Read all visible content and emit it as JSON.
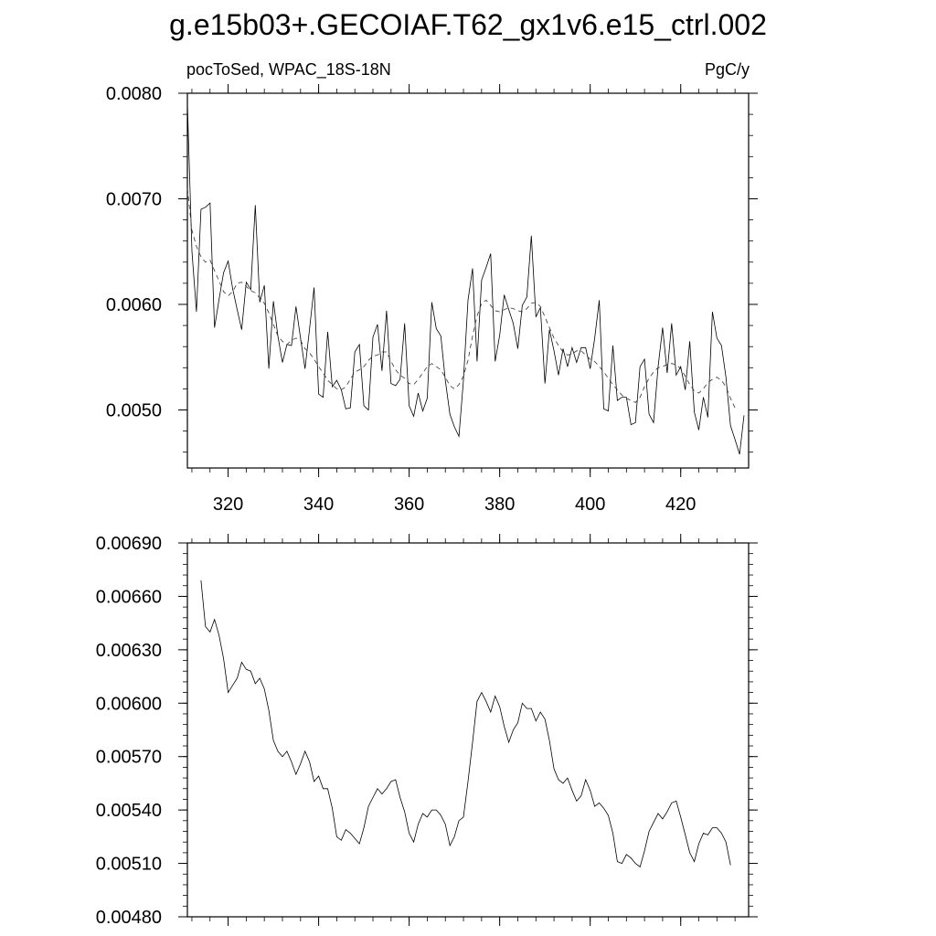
{
  "title": "g.e15b03+.GECOIAF.T62_gx1v6.e15_ctrl.002",
  "chart_data": [
    {
      "type": "line",
      "left_label": "pocToSed, WPAC_18S-18N",
      "right_label": "PgC/y",
      "xlim": [
        311,
        435
      ],
      "ylim": [
        0.00445,
        0.008
      ],
      "xticks": [
        320,
        340,
        360,
        380,
        400,
        420
      ],
      "xtick_labels": [
        "320",
        "340",
        "360",
        "380",
        "400",
        "420"
      ],
      "yticks": [
        0.005,
        0.006,
        0.007,
        0.008
      ],
      "ytick_labels": [
        "0.0050",
        "0.0060",
        "0.0070",
        "0.0080"
      ],
      "x_start": 311,
      "x_step": 1,
      "series": [
        {
          "style": "solid",
          "values": [
            0.0079,
            0.0065,
            0.00593,
            0.0069,
            0.00692,
            0.00696,
            0.00578,
            0.00605,
            0.0063,
            0.00641,
            0.00615,
            0.00595,
            0.00576,
            0.00621,
            0.00614,
            0.00694,
            0.00602,
            0.00618,
            0.00539,
            0.00603,
            0.0057,
            0.00545,
            0.00562,
            0.00561,
            0.00598,
            0.00568,
            0.00539,
            0.00577,
            0.00616,
            0.00515,
            0.00512,
            0.00574,
            0.00522,
            0.00528,
            0.00519,
            0.00501,
            0.00502,
            0.00555,
            0.00562,
            0.00504,
            0.005,
            0.00569,
            0.00581,
            0.00537,
            0.00594,
            0.00525,
            0.00523,
            0.00529,
            0.00582,
            0.00504,
            0.00494,
            0.00516,
            0.00499,
            0.00511,
            0.00602,
            0.00577,
            0.0057,
            0.00528,
            0.00496,
            0.00484,
            0.00475,
            0.00528,
            0.00604,
            0.00634,
            0.00546,
            0.00623,
            0.00635,
            0.00648,
            0.00546,
            0.00571,
            0.00609,
            0.00595,
            0.00582,
            0.00558,
            0.00599,
            0.00607,
            0.00665,
            0.00588,
            0.00597,
            0.00525,
            0.00576,
            0.00556,
            0.00533,
            0.00558,
            0.00541,
            0.00559,
            0.00545,
            0.00559,
            0.00559,
            0.00539,
            0.00568,
            0.00604,
            0.00501,
            0.00499,
            0.00561,
            0.00509,
            0.00512,
            0.00512,
            0.00486,
            0.00488,
            0.00541,
            0.00548,
            0.00496,
            0.00488,
            0.00541,
            0.00578,
            0.00535,
            0.00582,
            0.00533,
            0.00541,
            0.00519,
            0.00565,
            0.00498,
            0.00481,
            0.00512,
            0.00493,
            0.00593,
            0.00568,
            0.00561,
            0.00531,
            0.00485,
            0.00472,
            0.00458,
            0.00495
          ]
        },
        {
          "style": "dashed",
          "values": [
            0.0071,
            0.0067,
            0.00655,
            0.00645,
            0.0064,
            0.00642,
            0.00632,
            0.00622,
            0.00612,
            0.00608,
            0.00612,
            0.0062,
            0.00621,
            0.00617,
            0.00613,
            0.00611,
            0.00606,
            0.00601,
            0.00592,
            0.00581,
            0.0057,
            0.00565,
            0.00562,
            0.00566,
            0.00568,
            0.00566,
            0.00558,
            0.00554,
            0.00548,
            0.00541,
            0.00535,
            0.00528,
            0.00524,
            0.0052,
            0.00519,
            0.00522,
            0.00529,
            0.00536,
            0.00538,
            0.00541,
            0.00547,
            0.00551,
            0.00552,
            0.00555,
            0.00555,
            0.00546,
            0.00538,
            0.00533,
            0.0053,
            0.00525,
            0.00524,
            0.00529,
            0.00535,
            0.00541,
            0.00544,
            0.00541,
            0.00538,
            0.00531,
            0.00523,
            0.0052,
            0.00524,
            0.00532,
            0.00547,
            0.0057,
            0.00589,
            0.00601,
            0.00604,
            0.00599,
            0.00594,
            0.00593,
            0.00595,
            0.00597,
            0.00596,
            0.00594,
            0.00593,
            0.00596,
            0.00601,
            0.00602,
            0.00598,
            0.00588,
            0.00578,
            0.00568,
            0.00561,
            0.00555,
            0.00552,
            0.00553,
            0.00556,
            0.00556,
            0.00552,
            0.00548,
            0.00546,
            0.00541,
            0.00536,
            0.0053,
            0.00524,
            0.00519,
            0.00514,
            0.00511,
            0.00509,
            0.00507,
            0.00512,
            0.00522,
            0.0053,
            0.00536,
            0.0054,
            0.00541,
            0.00543,
            0.00544,
            0.00543,
            0.00539,
            0.00532,
            0.00524,
            0.00518,
            0.00516,
            0.0052,
            0.00526,
            0.00529,
            0.00531,
            0.00528,
            0.00522,
            0.00511,
            0.00502
          ]
        }
      ]
    },
    {
      "type": "line",
      "xlim": [
        311,
        435
      ],
      "ylim": [
        0.0048,
        0.0069
      ],
      "xticks": [
        320,
        340,
        360,
        380,
        400,
        420
      ],
      "xtick_labels": [],
      "yticks": [
        0.0048,
        0.0051,
        0.0054,
        0.0057,
        0.006,
        0.0063,
        0.0066,
        0.0069
      ],
      "ytick_labels": [
        "0.00480",
        "0.00510",
        "0.00540",
        "0.00570",
        "0.00600",
        "0.00630",
        "0.00660",
        "0.00690"
      ],
      "x_start": 314,
      "x_step": 1,
      "series": [
        {
          "style": "solid",
          "values": [
            0.00669,
            0.00643,
            0.0064,
            0.00647,
            0.00638,
            0.00625,
            0.00606,
            0.0061,
            0.00614,
            0.00623,
            0.00619,
            0.00618,
            0.00611,
            0.00614,
            0.00608,
            0.00596,
            0.00579,
            0.00573,
            0.0057,
            0.00573,
            0.00567,
            0.0056,
            0.00566,
            0.00573,
            0.00567,
            0.00556,
            0.00559,
            0.00552,
            0.00552,
            0.00541,
            0.00525,
            0.00523,
            0.00529,
            0.00527,
            0.00524,
            0.00521,
            0.0053,
            0.00542,
            0.00547,
            0.00552,
            0.00549,
            0.00552,
            0.00556,
            0.00557,
            0.00547,
            0.00539,
            0.00527,
            0.00522,
            0.00532,
            0.00538,
            0.00536,
            0.0054,
            0.0054,
            0.00537,
            0.00532,
            0.0052,
            0.00525,
            0.00534,
            0.00536,
            0.00556,
            0.00578,
            0.00601,
            0.00606,
            0.00601,
            0.00595,
            0.00604,
            0.00598,
            0.00587,
            0.00578,
            0.00585,
            0.00589,
            0.006,
            0.00597,
            0.00597,
            0.0059,
            0.00595,
            0.00591,
            0.00579,
            0.00563,
            0.00557,
            0.00555,
            0.00558,
            0.00551,
            0.00545,
            0.00548,
            0.00557,
            0.00551,
            0.00542,
            0.00544,
            0.00541,
            0.00537,
            0.00527,
            0.00511,
            0.0051,
            0.00515,
            0.00513,
            0.0051,
            0.00508,
            0.00517,
            0.00528,
            0.00533,
            0.00538,
            0.00535,
            0.00539,
            0.00544,
            0.00545,
            0.00536,
            0.00526,
            0.00516,
            0.00511,
            0.00521,
            0.00527,
            0.00526,
            0.0053,
            0.0053,
            0.00527,
            0.00522,
            0.00509
          ]
        }
      ]
    }
  ]
}
